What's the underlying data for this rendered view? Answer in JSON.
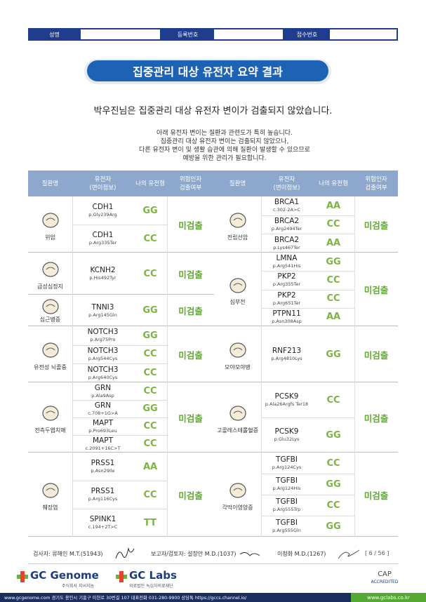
{
  "header": {
    "fields": [
      "성명",
      "등록번호",
      "접수번호"
    ]
  },
  "title": "집중관리 대상 유전자 요약 결과",
  "summary": "박우진님은 집중관리 대상 유전자 변이가 검출되지 않았습니다.",
  "notes": [
    "아래 유전자 변이는 질환과 관련도가 특히 높습니다.",
    "집중관리 대상 유전자 변이는 검출되지 않았으나,",
    "다른 유전자 변이 및 생활 습관에 의해 질환이 발생할 수 있으므로",
    "예방을 위한 관리가 필요합니다."
  ],
  "table": {
    "columns": [
      "질환명",
      "유전자\n(변이정보)",
      "나의 유전형",
      "위험인자\n검출여부"
    ],
    "left": [
      {
        "name": "위암",
        "genes": [
          {
            "gene": "CDH1",
            "variant": "p.Gly239Arg",
            "genotype": "GG"
          },
          {
            "gene": "CDH1",
            "variant": "p.Arg335Ter",
            "genotype": "CC"
          }
        ],
        "result": "미검출"
      },
      {
        "name": "급성심정지",
        "genes": [
          {
            "gene": "KCNH2",
            "variant": "p.His492Tyr",
            "genotype": "CC"
          }
        ],
        "result": "미검출"
      },
      {
        "name": "심근병증",
        "genes": [
          {
            "gene": "TNNI3",
            "variant": "p.Arg145Gln",
            "genotype": "GG"
          }
        ],
        "result": "미검출"
      },
      {
        "name": "유전성 뇌졸중",
        "genes": [
          {
            "gene": "NOTCH3",
            "variant": "p.Arg75Pro",
            "genotype": "GG"
          },
          {
            "gene": "NOTCH3",
            "variant": "p.Arg544Cys",
            "genotype": "CC"
          },
          {
            "gene": "NOTCH3",
            "variant": "p.Arg640Cys",
            "genotype": "CC"
          }
        ],
        "result": "미검출"
      },
      {
        "name": "전측두엽치매",
        "genes": [
          {
            "gene": "GRN",
            "variant": "p.Ala9Asp",
            "genotype": "CC"
          },
          {
            "gene": "GRN",
            "variant": "c.708+1G>A",
            "genotype": "GG"
          },
          {
            "gene": "MAPT",
            "variant": "p.Pro693Leu",
            "genotype": "CC"
          },
          {
            "gene": "MAPT",
            "variant": "c.2091+16C>T",
            "genotype": "CC"
          }
        ],
        "result": "미검출"
      },
      {
        "name": "췌장염",
        "genes": [
          {
            "gene": "PRSS1",
            "variant": "p.Asn29Ile",
            "genotype": "AA"
          },
          {
            "gene": "PRSS1",
            "variant": "p.Arg116Cys",
            "genotype": "CC"
          },
          {
            "gene": "SPINK1",
            "variant": "c.194+2T>C",
            "genotype": "TT"
          }
        ],
        "result": "미검출"
      }
    ],
    "right": [
      {
        "name": "전립선암",
        "genes": [
          {
            "gene": "BRCA1",
            "variant": "c.302-2A>C",
            "genotype": "AA"
          },
          {
            "gene": "BRCA2",
            "variant": "p.Arg2494Ter",
            "genotype": "CC"
          },
          {
            "gene": "BRCA2",
            "variant": "p.Lys467Ter",
            "genotype": "AA"
          }
        ],
        "result": "미검출"
      },
      {
        "name": "심부전",
        "genes": [
          {
            "gene": "LMNA",
            "variant": "p.Arg541His",
            "genotype": "GG"
          },
          {
            "gene": "PKP2",
            "variant": "p.Arg355Ter",
            "genotype": "CC"
          },
          {
            "gene": "PKP2",
            "variant": "p.Arg651Ter",
            "genotype": "CC"
          },
          {
            "gene": "PTPN11",
            "variant": "p.Asn308Asp",
            "genotype": "AA"
          }
        ],
        "result": "미검출"
      },
      {
        "name": "모야모야병",
        "genes": [
          {
            "gene": "RNF213",
            "variant": "p.Arg4810Lys",
            "genotype": "GG"
          }
        ],
        "result": "미검출"
      },
      {
        "name": "고콜레스테롤혈증",
        "genes": [
          {
            "gene": "PCSK9",
            "variant": "p.Ala26Argfs Ter18",
            "genotype": "CC"
          },
          {
            "gene": "PCSK9",
            "variant": "p.Glu32Lys",
            "genotype": "GG"
          }
        ],
        "result": "미검출"
      },
      {
        "name": "각막이영양증",
        "genes": [
          {
            "gene": "TGFBI",
            "variant": "p.Arg124Cys",
            "genotype": "CC"
          },
          {
            "gene": "TGFBI",
            "variant": "p.Arg124His",
            "genotype": "GG"
          },
          {
            "gene": "TGFBI",
            "variant": "p.Arg555Trp",
            "genotype": "CC"
          },
          {
            "gene": "TGFBI",
            "variant": "p.Arg555Gln",
            "genotype": "GG"
          }
        ],
        "result": "미검출"
      }
    ]
  },
  "footer": {
    "signers": [
      "검사자: 류해인 M.T.(51943)",
      "보고자/검토자: 설창안 M.D.(1037)",
      "이청화 M.D.(1267)"
    ],
    "page": "[ 6 / 56 ]",
    "logos": [
      "GC Genome",
      "주식회사 지씨지놈",
      "GC Labs",
      "의료법인 녹십자의료재단",
      "CAP",
      "ACCREDITED"
    ],
    "address": "www.gcgenome.com 경기도 용인시 기흥구 이현로 30번길 107 대표전화 031-280-9900 상담톡 https://gccs.channel.io/",
    "site": "www.gclabs.co.kr"
  }
}
